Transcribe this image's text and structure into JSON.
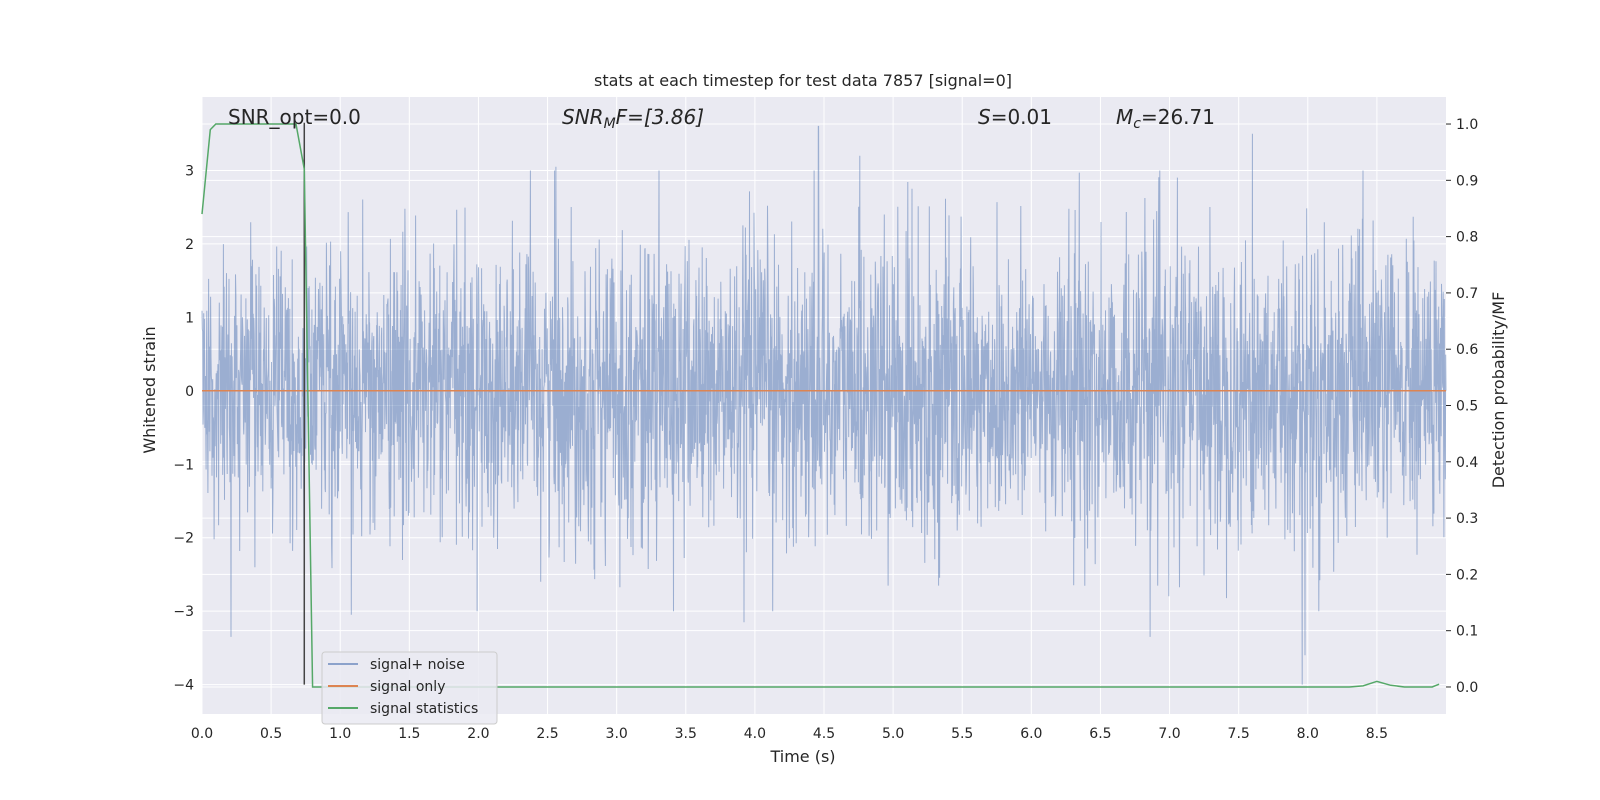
{
  "chart_data": {
    "type": "line",
    "title": "stats at each timestep for test data 7857 [signal=0]",
    "xlabel": "Time (s)",
    "ylabel": "Whitened strain",
    "ylabel_right": "Detection probability/MF",
    "xlim": [
      0.0,
      9.0
    ],
    "ylim": [
      -4.4,
      4.0
    ],
    "ylim_right": [
      -0.048,
      1.048
    ],
    "x_ticks": [
      "0.0",
      "0.5",
      "1.0",
      "1.5",
      "2.0",
      "2.5",
      "3.0",
      "3.5",
      "4.0",
      "4.5",
      "5.0",
      "5.5",
      "6.0",
      "6.5",
      "7.0",
      "7.5",
      "8.0",
      "8.5"
    ],
    "y_ticks": [
      "−4",
      "−3",
      "−2",
      "−1",
      "0",
      "1",
      "2",
      "3"
    ],
    "y_ticks_right": [
      "0.0",
      "0.1",
      "0.2",
      "0.3",
      "0.4",
      "0.5",
      "0.6",
      "0.7",
      "0.8",
      "0.9",
      "1.0"
    ],
    "grid": true,
    "legend_position": "lower-left",
    "annotations": {
      "snr_opt": "SNR_opt=0.0",
      "snr_mf_base": "SNR",
      "snr_mf_sub": "M",
      "snr_mf_rest": "F=[3.86]",
      "s_base": "S",
      "s_rest": "=0.01",
      "mc_base": "M",
      "mc_sub": "c",
      "mc_rest": "=26.71"
    },
    "vertical_marker_x": 0.74,
    "series": [
      {
        "name": "signal+ noise",
        "color": "#4c72b0",
        "note_values": "dense noise trace, approx gaussian with sigma ~1, range about -4.0 to 3.6",
        "envelope_peaks": [
          {
            "x": 0.21,
            "y": -3.35
          },
          {
            "x": 4.46,
            "y": 3.6
          },
          {
            "x": 4.76,
            "y": 3.2
          },
          {
            "x": 2.56,
            "y": 3.05
          },
          {
            "x": 3.92,
            "y": -3.15
          },
          {
            "x": 7.6,
            "y": 3.5
          },
          {
            "x": 7.96,
            "y": -4.0
          },
          {
            "x": 7.98,
            "y": -3.6
          },
          {
            "x": 6.86,
            "y": -3.35
          },
          {
            "x": 1.08,
            "y": -3.05
          }
        ]
      },
      {
        "name": "signal only",
        "color": "#dd8452",
        "x": [
          0.0,
          9.0
        ],
        "y": [
          0.0,
          0.0
        ]
      },
      {
        "name": "signal statistics",
        "color": "#55a868",
        "x": [
          0.0,
          0.06,
          0.1,
          0.2,
          0.3,
          0.4,
          0.5,
          0.6,
          0.68,
          0.74,
          0.8,
          1.0,
          2.0,
          3.0,
          4.0,
          5.0,
          6.0,
          7.0,
          8.0,
          8.3,
          8.4,
          8.5,
          8.6,
          8.7,
          8.8,
          8.9,
          8.95
        ],
        "y": [
          0.84,
          0.99,
          1.0,
          1.0,
          1.0,
          1.0,
          1.0,
          1.0,
          1.0,
          0.92,
          0.0,
          0.0,
          0.0,
          0.0,
          0.0,
          0.0,
          0.0,
          0.0,
          0.0,
          0.0,
          0.002,
          0.01,
          0.003,
          0.0,
          0.0,
          0.0,
          0.005
        ]
      }
    ]
  }
}
